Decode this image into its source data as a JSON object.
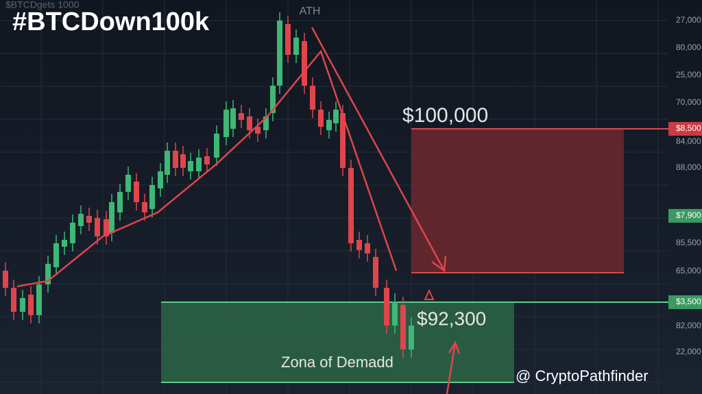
{
  "header": {
    "title": "#BTCDown100k",
    "watermark": "$BTCDgets 1000"
  },
  "annotations": {
    "ath": "ATH",
    "target": "$100,000",
    "current": "$92,300",
    "zone": "Zona of Demadd"
  },
  "axis_labels": [
    "27,000",
    "80,000",
    "25,000",
    "70,000",
    "84,000",
    "88,000",
    "85,500",
    "65,000",
    "82,000",
    "22,000"
  ],
  "price_tags": {
    "red": "$8,500",
    "green_upper": "$7,900",
    "green_lower": "$3,500"
  },
  "footer": {
    "handle": "@ CryptoPathfinder"
  }
}
